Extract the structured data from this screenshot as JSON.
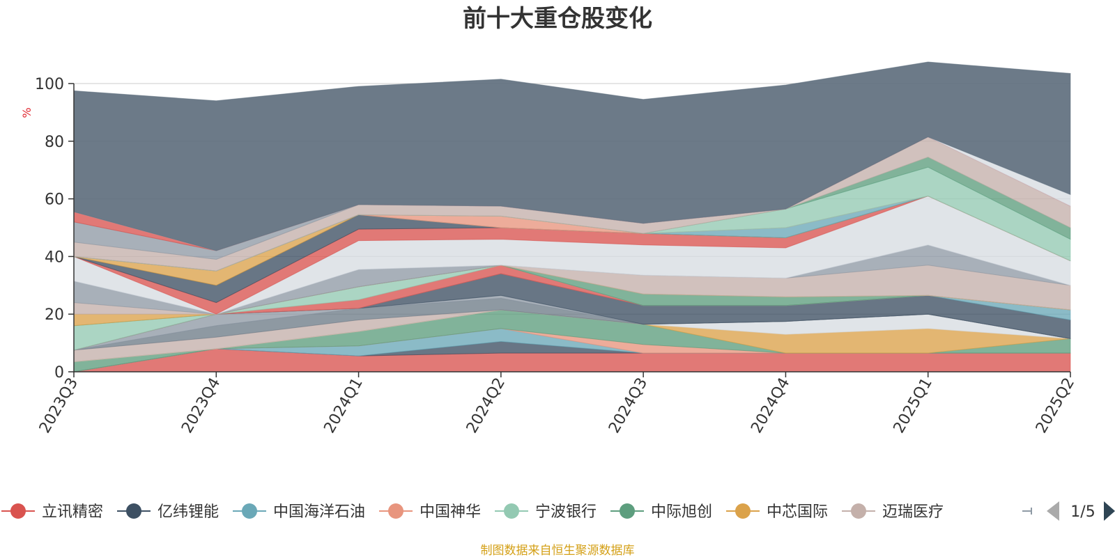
{
  "chart_data": {
    "type": "area",
    "stacked": true,
    "title": "前十大重仓股变化",
    "ylabel": "%",
    "ylim": [
      0,
      100
    ],
    "yticks": [
      0,
      20,
      40,
      60,
      80,
      100
    ],
    "grid": true,
    "legend_position": "bottom",
    "source": "制图数据来自恒生聚源数据库",
    "legend_page": "1/5",
    "categories": [
      "2023Q3",
      "2023Q4",
      "2024Q1",
      "2024Q2",
      "2024Q3",
      "2024Q4",
      "2025Q1",
      "2025Q2"
    ],
    "series": [
      {
        "name": "立讯精密",
        "color": "#d9534f",
        "values": [
          0,
          8,
          5.5,
          6.5,
          6.5,
          6.5,
          6.5,
          6.5
        ]
      },
      {
        "name": "",
        "color": "#3d5063",
        "values": [
          0,
          0,
          0,
          4,
          0,
          0,
          0,
          0
        ]
      },
      {
        "name": "中国海洋石油",
        "color": "#6aa8b7",
        "values": [
          0,
          0,
          3.5,
          4.5,
          0,
          0,
          0,
          0
        ]
      },
      {
        "name": "中国神华",
        "color": "#e8957e",
        "values": [
          0,
          0,
          0,
          0,
          3,
          0,
          0,
          0
        ]
      },
      {
        "name": "",
        "color": "#5d9e7e",
        "values": [
          3.5,
          0,
          5,
          6.5,
          7,
          0,
          0,
          5
        ]
      },
      {
        "name": "中芯国际",
        "color": "#dba24a",
        "values": [
          0,
          0,
          0,
          0,
          0,
          6.5,
          8.5,
          0
        ]
      },
      {
        "name": "",
        "color": "#d7dce2",
        "values": [
          0,
          0,
          0,
          0,
          0,
          4.5,
          5,
          0
        ]
      },
      {
        "name": "",
        "color": "#c4b0aa",
        "values": [
          4,
          4,
          4,
          0,
          0,
          0,
          0,
          0
        ]
      },
      {
        "name": "",
        "color": "#6e7c88",
        "values": [
          0,
          4,
          4,
          4,
          0,
          0,
          0,
          0
        ]
      },
      {
        "name": "",
        "color": "#8f9aa5",
        "values": [
          0,
          4,
          0,
          1,
          0,
          0,
          0,
          0
        ]
      },
      {
        "name": "",
        "color": "#3d5063",
        "values": [
          0,
          0,
          0,
          7.5,
          6.5,
          5.5,
          6.5,
          6.5
        ]
      },
      {
        "name": "",
        "color": "#6aa8b7",
        "values": [
          0,
          0,
          0,
          0,
          0,
          0,
          0,
          3.5
        ]
      },
      {
        "name": "",
        "color": "#d9534f",
        "values": [
          0,
          0,
          3,
          3,
          0,
          0,
          0,
          0
        ]
      },
      {
        "name": "",
        "color": "#93c9b2",
        "values": [
          8.5,
          0,
          4.5,
          0,
          0,
          0,
          0,
          0
        ]
      },
      {
        "name": "",
        "color": "#5d9e7e",
        "values": [
          0,
          0,
          0,
          0,
          4,
          3,
          0,
          0
        ]
      },
      {
        "name": "",
        "color": "#dba24a",
        "values": [
          4,
          0,
          0,
          0,
          0,
          0,
          0,
          0
        ]
      },
      {
        "name": "",
        "color": "#c4b0aa",
        "values": [
          4,
          0,
          0,
          0,
          6.5,
          6.5,
          10.5,
          8.5
        ]
      },
      {
        "name": "",
        "color": "#8f9aa5",
        "values": [
          7.5,
          0,
          6,
          0,
          0,
          0,
          7,
          0
        ]
      },
      {
        "name": "",
        "color": "#d7dce2",
        "values": [
          8.5,
          0,
          10,
          9,
          10.5,
          10.5,
          17,
          8.5
        ]
      },
      {
        "name": "",
        "color": "#d9534f",
        "values": [
          0,
          4,
          4,
          4,
          4,
          3.5,
          0,
          0
        ]
      },
      {
        "name": "",
        "color": "#3d5063",
        "values": [
          0,
          6,
          5,
          0,
          0,
          0,
          0,
          0
        ]
      },
      {
        "name": "",
        "color": "#dba24a",
        "values": [
          0,
          5,
          0,
          0,
          0,
          0,
          0,
          0
        ]
      },
      {
        "name": "",
        "color": "#6aa8b7",
        "values": [
          0,
          0,
          0,
          0,
          0,
          3.5,
          0,
          0
        ]
      },
      {
        "name": "",
        "color": "#e8957e",
        "values": [
          0,
          0,
          0,
          4,
          0,
          0,
          0,
          0
        ]
      },
      {
        "name": "",
        "color": "#93c9b2",
        "values": [
          0,
          0,
          0,
          0,
          0,
          6.5,
          10,
          7.5
        ]
      },
      {
        "name": "",
        "color": "#5d9e7e",
        "values": [
          0,
          0,
          0,
          0,
          0,
          0,
          3.5,
          4
        ]
      },
      {
        "name": "",
        "color": "#c4b0aa",
        "values": [
          5,
          4,
          3.5,
          3.5,
          3.5,
          0,
          7,
          7.5
        ]
      },
      {
        "name": "",
        "color": "#8f9aa5",
        "values": [
          7,
          3,
          0,
          0,
          0,
          0,
          0,
          0
        ]
      },
      {
        "name": "",
        "color": "#d9534f",
        "values": [
          3.5,
          0,
          0,
          0,
          0,
          0,
          0,
          0
        ]
      },
      {
        "name": "",
        "color": "#d7dce2",
        "values": [
          0,
          0,
          0,
          0,
          0,
          0,
          0,
          4
        ]
      },
      {
        "name": "亿纬锂能",
        "color": "#5f6f7e",
        "values": [
          42,
          52,
          41,
          44,
          43,
          43,
          26,
          42
        ]
      }
    ]
  },
  "legend": {
    "items": [
      {
        "label": "立讯精密",
        "color": "#d9534f"
      },
      {
        "label": "亿纬锂能",
        "color": "#3d5063"
      },
      {
        "label": "中国海洋石油",
        "color": "#6aa8b7"
      },
      {
        "label": "中国神华",
        "color": "#e8957e"
      },
      {
        "label": "宁波银行",
        "color": "#93c9b2"
      },
      {
        "label": "中际旭创",
        "color": "#5d9e7e"
      },
      {
        "label": "中芯国际",
        "color": "#dba24a"
      },
      {
        "label": "迈瑞医疗",
        "color": "#c4b0aa"
      }
    ],
    "next_color": "#8f9aa5",
    "nav_color": "#2f4554",
    "nav_disabled_color": "#aaaaaa"
  }
}
